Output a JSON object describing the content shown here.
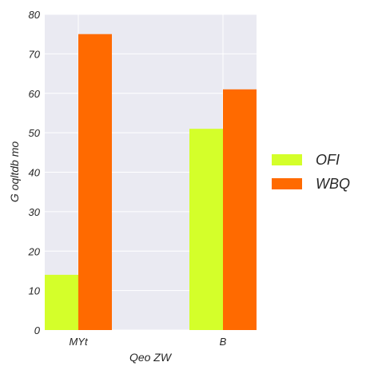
{
  "chart_data": {
    "type": "bar",
    "categories": [
      "MYt",
      "B"
    ],
    "series": [
      {
        "name": "OFI",
        "values": [
          14,
          51
        ],
        "color": "#d4ff2a"
      },
      {
        "name": "WBQ",
        "values": [
          75,
          61
        ],
        "color": "#ff6a00"
      }
    ],
    "xlabel": "Qeo ZW",
    "ylabel": "G oqltdb mo",
    "ylim": [
      0,
      80
    ],
    "yticks": [
      0,
      10,
      20,
      30,
      40,
      50,
      60,
      70,
      80
    ],
    "grid": true,
    "legend": "right",
    "background": "#eaeaf2"
  }
}
